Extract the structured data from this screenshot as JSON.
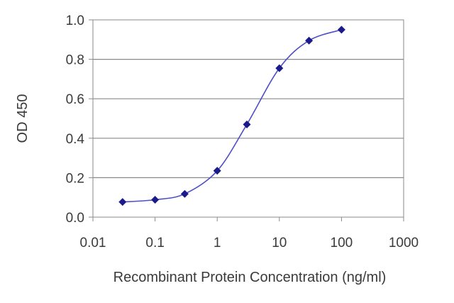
{
  "chart_data": {
    "type": "line",
    "title": "",
    "xlabel": "Recombinant Protein Concentration (ng/ml)",
    "ylabel": "OD 450",
    "x_scale": "log",
    "xlim": [
      0.01,
      1000
    ],
    "ylim": [
      0.0,
      1.0
    ],
    "x_ticks": [
      "0.01",
      "0.1",
      "1",
      "10",
      "100",
      "1000"
    ],
    "y_ticks": [
      "0.0",
      "0.2",
      "0.4",
      "0.6",
      "0.8",
      "1.0"
    ],
    "grid": "horizontal",
    "line_color": "#4f4fc6",
    "marker_color": "#1a1a8a",
    "series": [
      {
        "x": [
          0.03,
          0.1,
          0.3,
          1,
          3,
          10,
          30,
          100
        ],
        "y": [
          0.077,
          0.088,
          0.118,
          0.235,
          0.47,
          0.755,
          0.895,
          0.95
        ]
      }
    ]
  }
}
